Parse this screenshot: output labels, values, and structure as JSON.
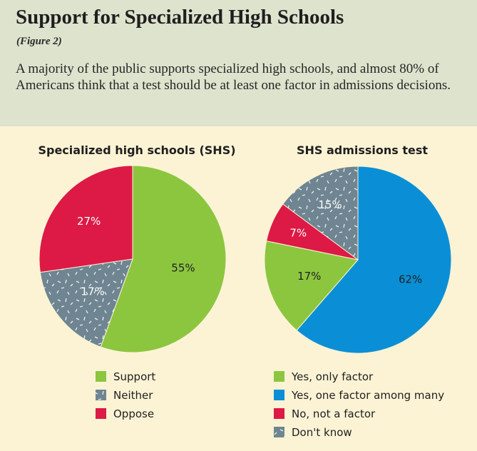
{
  "header": {
    "title": "Support for Specialized High Schools",
    "figure": "(Figure 2)",
    "subtitle": "A majority of the public supports specialized high schools, and almost 80% of Americans think that a test should be at least one factor in admissions decisions."
  },
  "colors": {
    "green": "#8cc63f",
    "blue": "#0a8fd6",
    "red": "#dc1a45",
    "gray": "#6f8591"
  },
  "chart_data": [
    {
      "type": "pie",
      "title": "Specialized high schools (SHS)",
      "slices": [
        {
          "label": "Support",
          "value": 55,
          "text": "55%",
          "color": "#8cc63f",
          "pattern": false
        },
        {
          "label": "Neither",
          "value": 17,
          "text": "17%",
          "color": "#6f8591",
          "pattern": true
        },
        {
          "label": "Oppose",
          "value": 27,
          "text": "27%",
          "color": "#dc1a45",
          "pattern": false
        }
      ]
    },
    {
      "type": "pie",
      "title": "SHS admissions test",
      "slices": [
        {
          "label": "Yes, one factor among many",
          "value": 62,
          "text": "62%",
          "color": "#0a8fd6",
          "pattern": false
        },
        {
          "label": "Yes, only factor",
          "value": 17,
          "text": "17%",
          "color": "#8cc63f",
          "pattern": false
        },
        {
          "label": "No, not a factor",
          "value": 7,
          "text": "7%",
          "color": "#dc1a45",
          "pattern": false
        },
        {
          "label": "Don't know",
          "value": 15,
          "text": "15%",
          "color": "#6f8591",
          "pattern": true
        }
      ],
      "legend_order": [
        "Yes, only factor",
        "Yes, one factor among many",
        "No, not a factor",
        "Don't know"
      ]
    }
  ]
}
